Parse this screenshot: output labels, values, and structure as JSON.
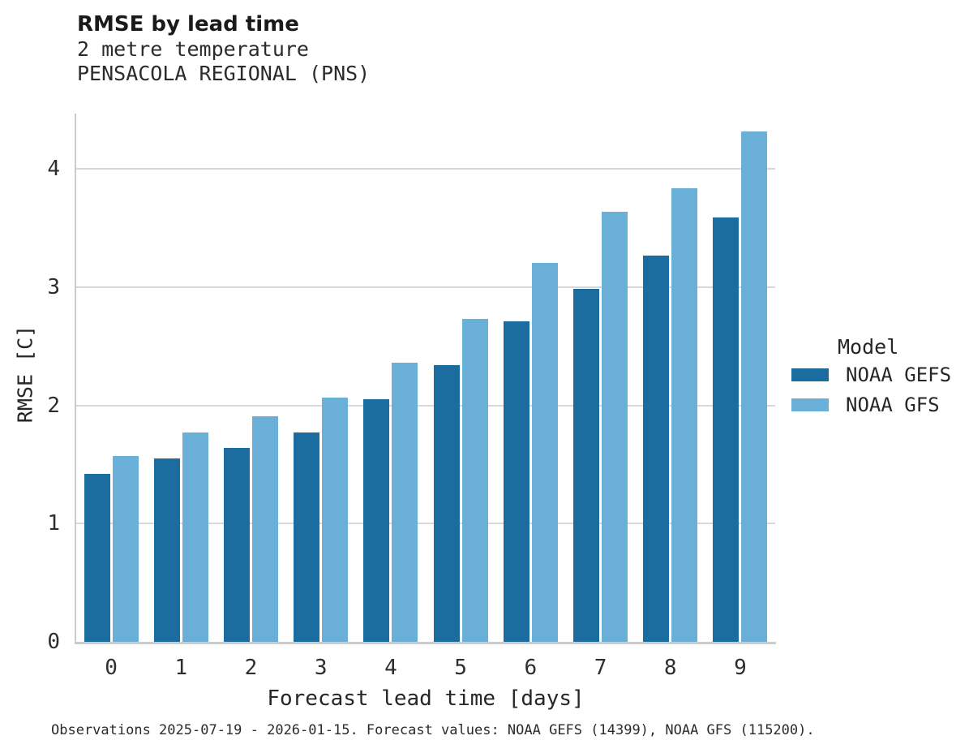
{
  "header": {
    "title": "RMSE by lead time",
    "subtitle1": "2 metre temperature",
    "subtitle2": "PENSACOLA REGIONAL (PNS)"
  },
  "chart_data": {
    "type": "bar",
    "title": "RMSE by lead time",
    "subtitle": [
      "2 metre temperature",
      "PENSACOLA REGIONAL (PNS)"
    ],
    "categories": [
      "0",
      "1",
      "2",
      "3",
      "4",
      "5",
      "6",
      "7",
      "8",
      "9"
    ],
    "series": [
      {
        "name": "NOAA GEFS",
        "color": "#1a6d9e",
        "values": [
          1.42,
          1.55,
          1.64,
          1.77,
          2.05,
          2.34,
          2.71,
          2.99,
          3.27,
          3.59
        ]
      },
      {
        "name": "NOAA GFS",
        "color": "#69afd8",
        "values": [
          1.57,
          1.77,
          1.91,
          2.07,
          2.36,
          2.73,
          3.21,
          3.64,
          3.84,
          4.32
        ]
      }
    ],
    "xlabel": "Forecast lead time [days]",
    "ylabel": "RMSE [C]",
    "ylim": [
      0,
      4.47
    ],
    "yticks": [
      0,
      1,
      2,
      3,
      4
    ],
    "grid": true,
    "legend_title": "Model",
    "legend_position": "right"
  },
  "legend": {
    "title": "Model",
    "entries": [
      {
        "label": "NOAA GEFS",
        "color": "#1a6d9e"
      },
      {
        "label": "NOAA GFS",
        "color": "#69afd8"
      }
    ]
  },
  "footer": {
    "text": "Observations 2025-07-19 - 2026-01-15. Forecast values: NOAA GEFS (14399), NOAA GFS (115200)."
  }
}
